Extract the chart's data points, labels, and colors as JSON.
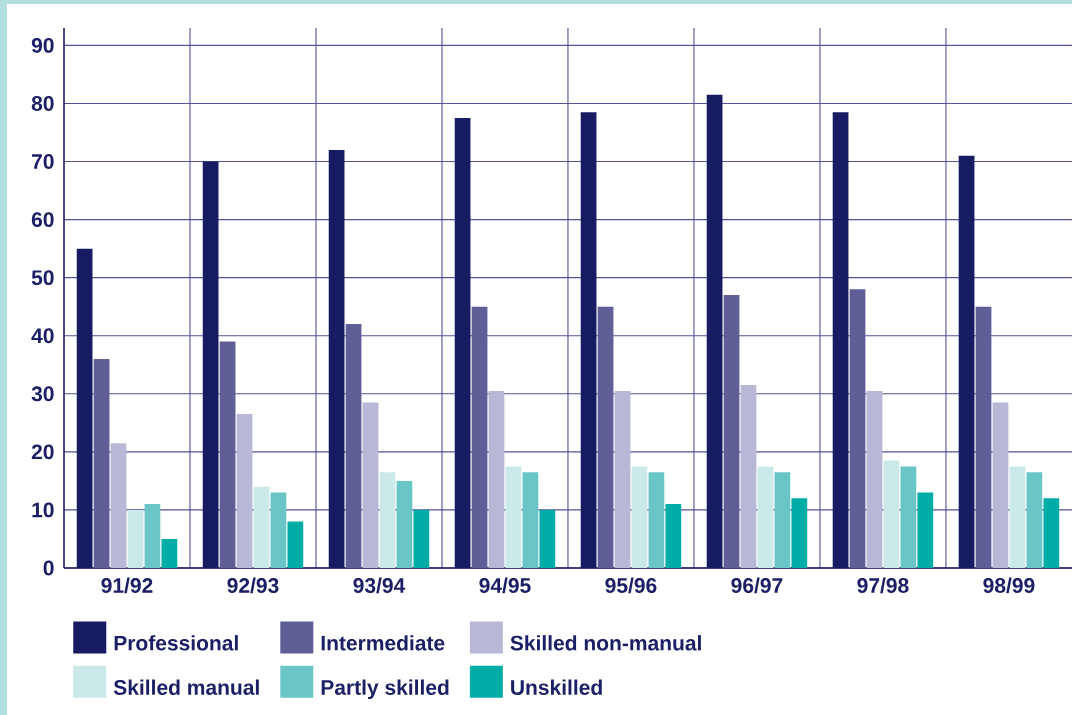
{
  "chart_data": {
    "type": "bar",
    "categories": [
      "91/92",
      "92/93",
      "93/94",
      "94/95",
      "95/96",
      "96/97",
      "97/98",
      "98/99"
    ],
    "series": [
      {
        "name": "Professional",
        "color": "#171c62",
        "values": [
          55,
          70,
          72,
          77.5,
          78.5,
          81.5,
          78.5,
          71
        ]
      },
      {
        "name": "Intermediate",
        "color": "#5f5e96",
        "values": [
          36,
          39,
          42,
          45,
          45,
          47,
          48,
          45
        ]
      },
      {
        "name": "Skilled non-manual",
        "color": "#b8b8d6",
        "values": [
          21.5,
          26.5,
          28.5,
          30.5,
          30.5,
          31.5,
          30.5,
          28.5
        ]
      },
      {
        "name": "Skilled manual",
        "color": "#cce9e9",
        "values": [
          10,
          14,
          16.5,
          17.5,
          17.5,
          17.5,
          18.5,
          17.5
        ]
      },
      {
        "name": "Partly skilled",
        "color": "#6ac6c6",
        "values": [
          11,
          13,
          15,
          16.5,
          16.5,
          16.5,
          17.5,
          16.5
        ]
      },
      {
        "name": "Unskilled",
        "color": "#00aca6",
        "values": [
          5,
          8,
          10,
          10,
          11,
          12,
          13,
          12
        ]
      }
    ],
    "ylim": [
      0,
      93
    ],
    "yticks": [
      0,
      10,
      20,
      30,
      40,
      50,
      60,
      70,
      80,
      90
    ],
    "grid": true,
    "legend": "bottom"
  }
}
